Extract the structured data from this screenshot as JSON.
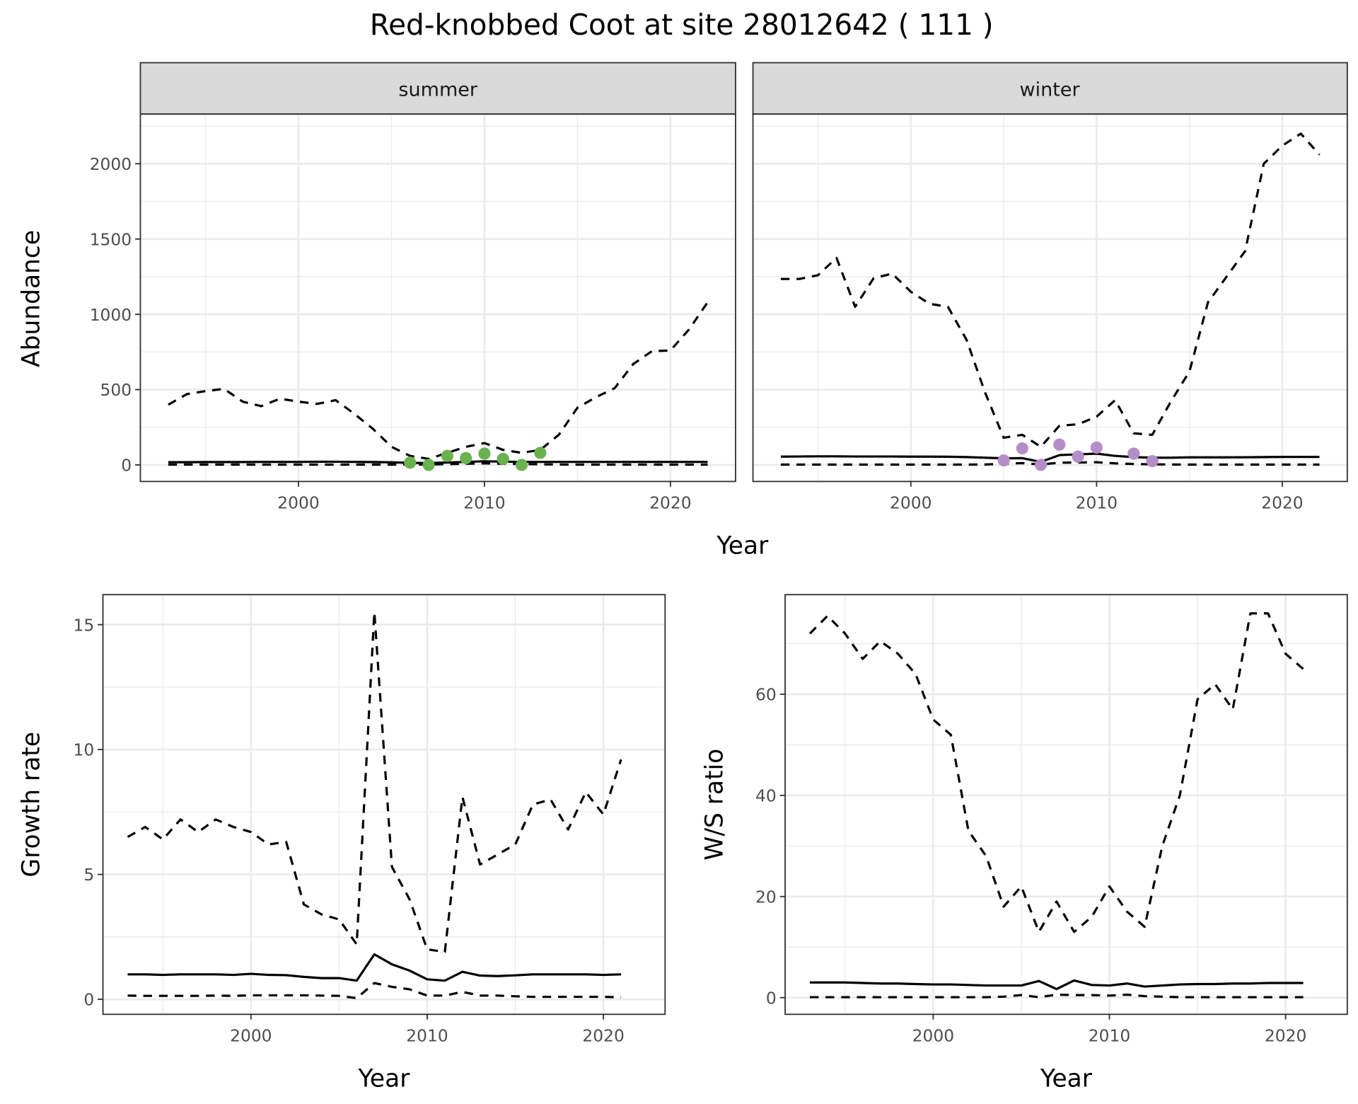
{
  "title": "Red-knobbed Coot at site 28012642 ( 111 )",
  "colors": {
    "summer_points": "#6ab24f",
    "winter_points": "#b48ec9",
    "lines": "#000000",
    "grid": "#ebebeb",
    "strip": "#d9d9d9"
  },
  "chart_data": [
    {
      "type": "line",
      "facet": "summer",
      "xlabel": "Year",
      "ylabel": "Abundance",
      "xlim": [
        1991.5,
        2023.5
      ],
      "ylim": [
        -110,
        2330
      ],
      "xticks": [
        2000,
        2010,
        2020
      ],
      "yticks": [
        0,
        500,
        1000,
        1500,
        2000
      ],
      "grid": true,
      "x": [
        1993,
        1994,
        1995,
        1996,
        1997,
        1998,
        1999,
        2000,
        2001,
        2002,
        2003,
        2004,
        2005,
        2006,
        2007,
        2008,
        2009,
        2010,
        2011,
        2012,
        2013,
        2014,
        2015,
        2016,
        2017,
        2018,
        2019,
        2020,
        2021,
        2022
      ],
      "series": [
        {
          "style": "dashed",
          "values": [
            400,
            470,
            490,
            505,
            420,
            390,
            440,
            420,
            405,
            430,
            340,
            240,
            120,
            60,
            40,
            80,
            120,
            145,
            100,
            80,
            100,
            200,
            380,
            450,
            510,
            670,
            755,
            760,
            900,
            1080
          ]
        },
        {
          "style": "solid",
          "values": [
            18,
            18,
            19,
            19,
            19,
            20,
            20,
            20,
            21,
            21,
            20,
            19,
            17,
            14,
            12,
            16,
            20,
            24,
            22,
            20,
            20,
            20,
            20,
            20,
            20,
            20,
            20,
            20,
            20,
            20
          ]
        },
        {
          "style": "dashed",
          "values": [
            2,
            2,
            2,
            2,
            2,
            2,
            2,
            2,
            2,
            2,
            2,
            2,
            2,
            3,
            3,
            5,
            8,
            10,
            8,
            6,
            4,
            3,
            2,
            2,
            2,
            2,
            2,
            2,
            2,
            2
          ]
        }
      ],
      "points": {
        "x": [
          2006,
          2007,
          2008,
          2009,
          2010,
          2011,
          2012,
          2013
        ],
        "y": [
          15,
          0,
          60,
          45,
          75,
          40,
          0,
          80
        ]
      }
    },
    {
      "type": "line",
      "facet": "winter",
      "xlabel": "Year",
      "ylabel": "Abundance",
      "xlim": [
        1991.5,
        2023.5
      ],
      "ylim": [
        -110,
        2330
      ],
      "xticks": [
        2000,
        2010,
        2020
      ],
      "yticks": [
        0,
        500,
        1000,
        1500,
        2000
      ],
      "grid": true,
      "x": [
        1993,
        1994,
        1995,
        1996,
        1997,
        1998,
        1999,
        2000,
        2001,
        2002,
        2003,
        2004,
        2005,
        2006,
        2007,
        2008,
        2009,
        2010,
        2011,
        2012,
        2013,
        2014,
        2015,
        2016,
        2017,
        2018,
        2019,
        2020,
        2021,
        2022
      ],
      "series": [
        {
          "style": "dashed",
          "values": [
            1235,
            1235,
            1260,
            1375,
            1050,
            1240,
            1270,
            1150,
            1070,
            1050,
            830,
            480,
            180,
            200,
            120,
            260,
            270,
            320,
            430,
            210,
            200,
            420,
            620,
            1080,
            1250,
            1420,
            2000,
            2120,
            2200,
            2060
          ]
        },
        {
          "style": "solid",
          "values": [
            55,
            56,
            57,
            57,
            56,
            56,
            56,
            55,
            55,
            54,
            52,
            48,
            44,
            45,
            20,
            65,
            70,
            75,
            60,
            52,
            48,
            48,
            50,
            50,
            50,
            51,
            52,
            53,
            53,
            53
          ]
        },
        {
          "style": "dashed",
          "values": [
            2,
            2,
            2,
            2,
            2,
            2,
            2,
            2,
            2,
            2,
            2,
            3,
            8,
            12,
            3,
            15,
            16,
            18,
            10,
            6,
            4,
            3,
            2,
            2,
            2,
            2,
            2,
            2,
            2,
            2
          ]
        }
      ],
      "points": {
        "x": [
          2005,
          2006,
          2007,
          2008,
          2009,
          2010,
          2012,
          2013
        ],
        "y": [
          30,
          110,
          0,
          135,
          55,
          115,
          75,
          25
        ]
      }
    },
    {
      "type": "line",
      "xlabel": "Year",
      "ylabel": "Growth rate",
      "xlim": [
        1991.6,
        2023.5
      ],
      "ylim": [
        -0.6,
        16.2
      ],
      "xticks": [
        2000,
        2010,
        2020
      ],
      "yticks": [
        0,
        5,
        10,
        15
      ],
      "grid": true,
      "x": [
        1993,
        1994,
        1995,
        1996,
        1997,
        1998,
        1999,
        2000,
        2001,
        2002,
        2003,
        2004,
        2005,
        2006,
        2007,
        2008,
        2009,
        2010,
        2011,
        2012,
        2013,
        2014,
        2015,
        2016,
        2017,
        2018,
        2019,
        2020,
        2021
      ],
      "series": [
        {
          "style": "dashed",
          "values": [
            6.5,
            6.9,
            6.4,
            7.2,
            6.7,
            7.2,
            6.9,
            6.7,
            6.2,
            6.3,
            3.8,
            3.4,
            3.2,
            2.2,
            15.5,
            5.3,
            4.0,
            2.0,
            1.9,
            8.1,
            5.4,
            5.8,
            6.2,
            7.8,
            8.0,
            6.8,
            8.3,
            7.4,
            9.6
          ]
        },
        {
          "style": "solid",
          "values": [
            1.0,
            1.0,
            0.98,
            1.0,
            1.0,
            1.0,
            0.98,
            1.02,
            0.98,
            0.97,
            0.9,
            0.85,
            0.85,
            0.75,
            1.8,
            1.4,
            1.15,
            0.8,
            0.75,
            1.1,
            0.95,
            0.93,
            0.96,
            1.0,
            1.0,
            1.0,
            1.0,
            0.98,
            1.0
          ]
        },
        {
          "style": "dashed",
          "values": [
            0.15,
            0.14,
            0.14,
            0.14,
            0.14,
            0.15,
            0.14,
            0.16,
            0.16,
            0.16,
            0.16,
            0.15,
            0.14,
            0.05,
            0.65,
            0.5,
            0.4,
            0.15,
            0.15,
            0.3,
            0.15,
            0.15,
            0.12,
            0.1,
            0.1,
            0.1,
            0.1,
            0.1,
            0.08
          ]
        }
      ]
    },
    {
      "type": "line",
      "xlabel": "Year",
      "ylabel": "W/S ratio",
      "xlim": [
        1991.6,
        2023.5
      ],
      "ylim": [
        -3.3,
        79.7
      ],
      "xticks": [
        2000,
        2010,
        2020
      ],
      "yticks": [
        0,
        20,
        40,
        60
      ],
      "grid": true,
      "x": [
        1993,
        1994,
        1995,
        1996,
        1997,
        1998,
        1999,
        2000,
        2001,
        2002,
        2003,
        2004,
        2005,
        2006,
        2007,
        2008,
        2009,
        2010,
        2011,
        2012,
        2013,
        2014,
        2015,
        2016,
        2017,
        2018,
        2019,
        2020,
        2021
      ],
      "series": [
        {
          "style": "dashed",
          "values": [
            72,
            75.5,
            72,
            67,
            70.5,
            68,
            64,
            55,
            52,
            33,
            28,
            18,
            22,
            13,
            19,
            13,
            16,
            22,
            17,
            14,
            30,
            40,
            59,
            62,
            57,
            76,
            76,
            68,
            65
          ]
        },
        {
          "style": "solid",
          "values": [
            3.0,
            3.0,
            3.0,
            2.9,
            2.8,
            2.8,
            2.7,
            2.6,
            2.6,
            2.5,
            2.4,
            2.4,
            2.4,
            3.3,
            1.7,
            3.4,
            2.5,
            2.4,
            2.8,
            2.2,
            2.4,
            2.6,
            2.7,
            2.7,
            2.8,
            2.8,
            2.9,
            2.9,
            2.9
          ]
        },
        {
          "style": "dashed",
          "values": [
            0.1,
            0.1,
            0.1,
            0.1,
            0.1,
            0.1,
            0.1,
            0.1,
            0.1,
            0.1,
            0.1,
            0.2,
            0.5,
            0.1,
            0.6,
            0.5,
            0.5,
            0.4,
            0.6,
            0.3,
            0.2,
            0.1,
            0.1,
            0.1,
            0.1,
            0.1,
            0.1,
            0.1,
            0.1
          ]
        }
      ]
    }
  ]
}
